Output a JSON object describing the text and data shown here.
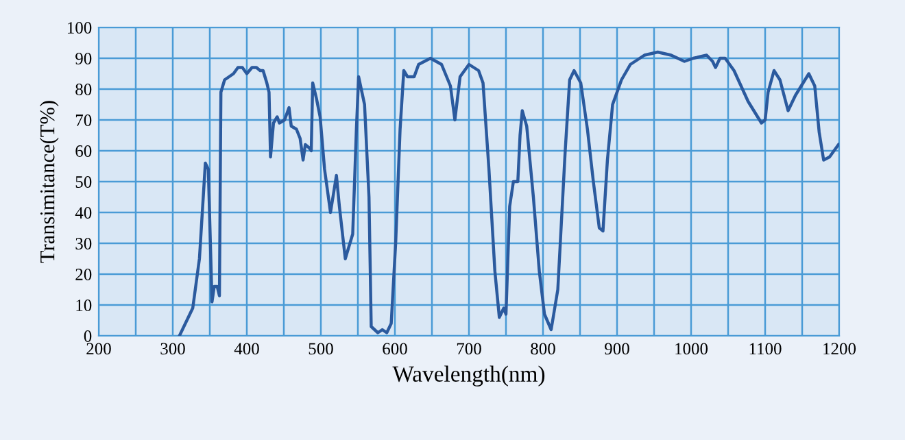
{
  "chart_data": {
    "type": "line",
    "xlabel": "Wavelength(nm)",
    "ylabel": "Transimitance(T%)",
    "xlim": [
      200,
      1200
    ],
    "xticks": [
      200,
      300,
      400,
      500,
      600,
      700,
      800,
      900,
      1000,
      1100,
      1200
    ],
    "ylim": [
      0,
      100
    ],
    "yticks": [
      0,
      10,
      20,
      30,
      40,
      50,
      60,
      70,
      80,
      90,
      100
    ],
    "grid": true,
    "marker": "none",
    "line_style": "solid",
    "series": [
      {
        "color": "#2b5a9e",
        "x": [
          309,
          327,
          336,
          344,
          348,
          353,
          356,
          360,
          363,
          365,
          370,
          376,
          382,
          388,
          394,
          400,
          407,
          413,
          418,
          422,
          427,
          430,
          432,
          436,
          441,
          444,
          451,
          457,
          460,
          467,
          472,
          476,
          479,
          484,
          487,
          489,
          494,
          499,
          505,
          513,
          521,
          525,
          533,
          543,
          548,
          551,
          559,
          565,
          568,
          577,
          583,
          589,
          595,
          601,
          607,
          612,
          617,
          626,
          632,
          648,
          663,
          675,
          681,
          688,
          700,
          713,
          719,
          727,
          735,
          741,
          747,
          750,
          755,
          760,
          766,
          769,
          772,
          778,
          787,
          795,
          802,
          811,
          820,
          830,
          836,
          842,
          851,
          860,
          868,
          876,
          881,
          887,
          894,
          906,
          918,
          937,
          955,
          973,
          991,
          1003,
          1021,
          1029,
          1033,
          1039,
          1046,
          1058,
          1077,
          1095,
          1100,
          1104,
          1112,
          1120,
          1131,
          1141,
          1159,
          1167,
          1173,
          1179,
          1187,
          1199
        ],
        "values": [
          0,
          9,
          25,
          56,
          54,
          11,
          16,
          16,
          13,
          79,
          83,
          84,
          85,
          87,
          87,
          85,
          87,
          87,
          86,
          86,
          82,
          79,
          58,
          69,
          71,
          69,
          70,
          74,
          68,
          67,
          64,
          57,
          62,
          61,
          60,
          82,
          77,
          71,
          54,
          40,
          52,
          42,
          25,
          33,
          67,
          84,
          75,
          45,
          3,
          1,
          2,
          1,
          4,
          30,
          67,
          86,
          84,
          84,
          88,
          90,
          88,
          81,
          70,
          84,
          88,
          86,
          82,
          54,
          21,
          6,
          9,
          7,
          42,
          50,
          50,
          65,
          73,
          68,
          45,
          21,
          7,
          2,
          15,
          60,
          83,
          86,
          82,
          67,
          50,
          35,
          34,
          57,
          75,
          83,
          88,
          91,
          92,
          91,
          89,
          90,
          91,
          89,
          87,
          90,
          90,
          86,
          76,
          69,
          70,
          79,
          86,
          83,
          73,
          78,
          85,
          81,
          66,
          57,
          58,
          62
        ]
      }
    ]
  }
}
